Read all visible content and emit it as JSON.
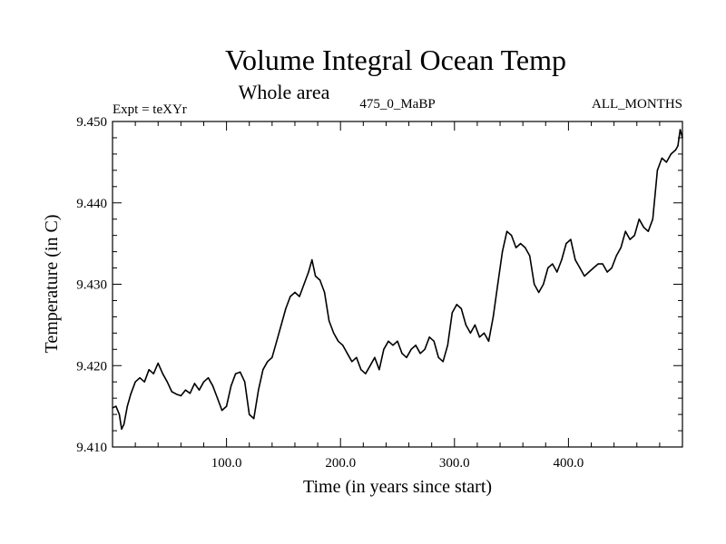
{
  "chart_data": {
    "type": "line",
    "title": "Volume Integral Ocean Temp",
    "subtitle": "Whole area",
    "annotations": {
      "left": "Expt = teXYr",
      "center": "475_0_MaBP",
      "right": "ALL_MONTHS"
    },
    "xlabel": "Time (in years since start)",
    "ylabel": "Temperature (in C)",
    "xlim": [
      0,
      500
    ],
    "ylim": [
      9.41,
      9.45
    ],
    "x_ticks": [
      100,
      200,
      300,
      400
    ],
    "x_tick_labels": [
      "100.0",
      "200.0",
      "300.0",
      "400.0"
    ],
    "y_ticks": [
      9.41,
      9.42,
      9.43,
      9.44,
      9.45
    ],
    "y_tick_labels": [
      "9.410",
      "9.420",
      "9.430",
      "9.440",
      "9.450"
    ],
    "grid": false,
    "legend": "none",
    "series_color": "#000000",
    "series": [
      {
        "x": [
          0,
          3,
          6,
          8,
          10,
          13,
          16,
          20,
          24,
          28,
          32,
          36,
          40,
          44,
          48,
          52,
          56,
          60,
          64,
          68,
          72,
          76,
          80,
          84,
          88,
          92,
          96,
          100,
          104,
          108,
          112,
          116,
          120,
          124,
          128,
          132,
          136,
          140,
          144,
          148,
          152,
          156,
          160,
          164,
          168,
          172,
          175,
          178,
          182,
          186,
          190,
          194,
          198,
          202,
          206,
          210,
          214,
          218,
          222,
          226,
          230,
          234,
          238,
          242,
          246,
          250,
          254,
          258,
          262,
          266,
          270,
          274,
          278,
          282,
          286,
          290,
          294,
          298,
          302,
          306,
          310,
          314,
          318,
          322,
          326,
          330,
          334,
          338,
          342,
          346,
          350,
          354,
          358,
          362,
          366,
          370,
          374,
          378,
          382,
          386,
          390,
          394,
          398,
          402,
          406,
          410,
          414,
          418,
          422,
          426,
          430,
          434,
          438,
          442,
          446,
          450,
          454,
          458,
          462,
          466,
          470,
          474,
          478,
          482,
          486,
          490,
          494,
          496,
          498,
          500
        ],
        "y": [
          9.4148,
          9.415,
          9.414,
          9.4122,
          9.4128,
          9.415,
          9.4165,
          9.418,
          9.4185,
          9.418,
          9.4195,
          9.419,
          9.4203,
          9.419,
          9.418,
          9.4168,
          9.4165,
          9.4163,
          9.417,
          9.4166,
          9.4178,
          9.417,
          9.418,
          9.4185,
          9.4175,
          9.416,
          9.4145,
          9.415,
          9.4175,
          9.419,
          9.4192,
          9.418,
          9.414,
          9.4135,
          9.417,
          9.4195,
          9.4205,
          9.421,
          9.423,
          9.425,
          9.427,
          9.4285,
          9.429,
          9.4285,
          9.43,
          9.4315,
          9.433,
          9.431,
          9.4305,
          9.429,
          9.4255,
          9.424,
          9.423,
          9.4225,
          9.4215,
          9.4205,
          9.421,
          9.4195,
          9.419,
          9.42,
          9.421,
          9.4195,
          9.422,
          9.423,
          9.4225,
          9.423,
          9.4215,
          9.421,
          9.422,
          9.4225,
          9.4215,
          9.422,
          9.4235,
          9.423,
          9.421,
          9.4205,
          9.4225,
          9.4265,
          9.4275,
          9.427,
          9.425,
          9.424,
          9.425,
          9.4235,
          9.424,
          9.423,
          9.426,
          9.43,
          9.434,
          9.4365,
          9.436,
          9.4345,
          9.435,
          9.4345,
          9.4335,
          9.43,
          9.429,
          9.43,
          9.432,
          9.4325,
          9.4315,
          9.433,
          9.435,
          9.4355,
          9.433,
          9.432,
          9.431,
          9.4315,
          9.432,
          9.4325,
          9.4325,
          9.4315,
          9.432,
          9.4335,
          9.4345,
          9.4365,
          9.4355,
          9.436,
          9.438,
          9.437,
          9.4365,
          9.438,
          9.444,
          9.4455,
          9.445,
          9.446,
          9.4465,
          9.447,
          9.449,
          9.448
        ]
      }
    ]
  }
}
